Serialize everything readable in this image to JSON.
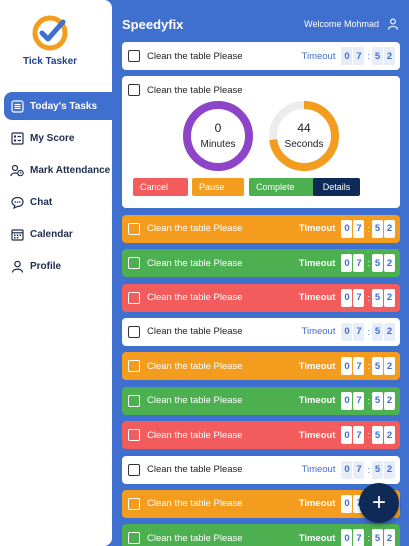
{
  "sidebar": {
    "logo_text": "Tick Tasker",
    "items": [
      {
        "label": "Today's Tasks",
        "icon": "list-icon",
        "active": true
      },
      {
        "label": "My Score",
        "icon": "scorecard-icon",
        "active": false
      },
      {
        "label": "Mark Attendance",
        "icon": "user-clock-icon",
        "active": false
      },
      {
        "label": "Chat",
        "icon": "chat-bubble-icon",
        "active": false
      },
      {
        "label": "Calendar",
        "icon": "calendar-icon",
        "active": false
      },
      {
        "label": "Profile",
        "icon": "user-icon",
        "active": false
      }
    ]
  },
  "header": {
    "title": "Speedyfix",
    "welcome": "Welcome Mohmad",
    "user_icon": "user-icon"
  },
  "colors": {
    "primary": "#3f6fcf",
    "dark": "#0f2a56",
    "orange": "#f39c1d",
    "green": "#4caf50",
    "red": "#f25c5c"
  },
  "tasks": [
    {
      "label": "Clean the table Please",
      "timer_label": "Timeout",
      "digits": [
        "0",
        "7",
        "5",
        "2"
      ],
      "color": "white"
    },
    {
      "label": "Clean the table Please",
      "expanded": true
    },
    {
      "label": "Clean the table Please",
      "timer_label": "Timeout",
      "digits": [
        "0",
        "7",
        "5",
        "2"
      ],
      "color": "orange"
    },
    {
      "label": "Clean the table Please",
      "timer_label": "Timeout",
      "digits": [
        "0",
        "7",
        "5",
        "2"
      ],
      "color": "green"
    },
    {
      "label": "Clean the table Please",
      "timer_label": "Timeout",
      "digits": [
        "0",
        "7",
        "5",
        "2"
      ],
      "color": "red"
    },
    {
      "label": "Clean the table Please",
      "timer_label": "Timeout",
      "digits": [
        "0",
        "7",
        "5",
        "2"
      ],
      "color": "white"
    },
    {
      "label": "Clean the table Please",
      "timer_label": "Timeout",
      "digits": [
        "0",
        "7",
        "5",
        "2"
      ],
      "color": "orange"
    },
    {
      "label": "Clean the table Please",
      "timer_label": "Timeout",
      "digits": [
        "0",
        "7",
        "5",
        "2"
      ],
      "color": "green"
    },
    {
      "label": "Clean the table Please",
      "timer_label": "Timeout",
      "digits": [
        "0",
        "7",
        "5",
        "2"
      ],
      "color": "red"
    },
    {
      "label": "Clean the table Please",
      "timer_label": "Timeout",
      "digits": [
        "0",
        "7",
        "5",
        "2"
      ],
      "color": "white"
    },
    {
      "label": "Clean the table Please",
      "timer_label": "Timeout",
      "digits": [
        "0",
        "7",
        "5",
        "2"
      ],
      "color": "orange"
    },
    {
      "label": "Clean the table Please",
      "timer_label": "Timeout",
      "digits": [
        "0",
        "7",
        "5",
        "2"
      ],
      "color": "green"
    }
  ],
  "expanded_task": {
    "label": "Clean the table Please",
    "minutes_value": "0",
    "minutes_unit": "Minutes",
    "minutes_progress": 1.0,
    "seconds_value": "44",
    "seconds_unit": "Seconds",
    "seconds_progress": 0.73,
    "buttons": {
      "cancel": "Cancel",
      "pause": "Pause",
      "complete": "Complete",
      "details": "Details"
    }
  },
  "fab": {
    "label": "+",
    "icon": "plus-icon"
  }
}
